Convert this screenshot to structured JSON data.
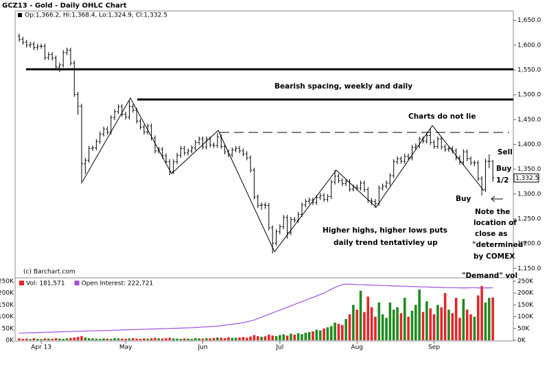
{
  "chart_data": [
    {
      "type": "ohlc",
      "title": "GCZ13 - Gold - Daily OHLC Chart",
      "subtitle": "Op:1,366.2, Hi:1,368.4, Lo:1,324.9, Cl:1,332.5",
      "source": "(c) Barchart.com",
      "last_label": "1,332.5",
      "color": "#000000",
      "categories": [
        null,
        null,
        null,
        null,
        null,
        null,
        "Apr 13",
        null,
        null,
        null,
        null,
        null,
        null,
        null,
        null,
        null,
        null,
        null,
        null,
        null,
        null,
        null,
        null,
        null,
        null,
        null,
        null,
        null,
        null,
        "May",
        null,
        null,
        null,
        null,
        null,
        null,
        null,
        null,
        null,
        null,
        null,
        null,
        null,
        null,
        null,
        null,
        null,
        null,
        null,
        null,
        "Jun",
        null,
        null,
        null,
        null,
        null,
        null,
        null,
        null,
        null,
        null,
        null,
        null,
        null,
        null,
        null,
        null,
        null,
        null,
        null,
        null,
        "Jul",
        null,
        null,
        null,
        null,
        null,
        null,
        null,
        null,
        null,
        null,
        null,
        null,
        null,
        null,
        null,
        null,
        null,
        null,
        null,
        null,
        "Aug",
        null,
        null,
        null,
        null,
        null,
        null,
        null,
        null,
        null,
        null,
        null,
        null,
        null,
        null,
        null,
        null,
        null,
        null,
        null,
        null,
        "Sep",
        null,
        null,
        null,
        null,
        null,
        null,
        null,
        null,
        null,
        null,
        null,
        null,
        null,
        null,
        null,
        null
      ],
      "open": [
        1618,
        1612,
        1606,
        1600,
        1602,
        1595,
        1598,
        1598,
        1575,
        1581,
        1574,
        1556,
        1560,
        1585,
        1590,
        1564,
        1501,
        1477,
        1361,
        1368,
        1392,
        1393,
        1406,
        1421,
        1431,
        1425,
        1454,
        1466,
        1476,
        1461,
        1455,
        1476,
        1469,
        1447,
        1435,
        1425,
        1437,
        1413,
        1387,
        1390,
        1377,
        1365,
        1345,
        1365,
        1378,
        1392,
        1383,
        1387,
        1393,
        1404,
        1411,
        1395,
        1411,
        1399,
        1398,
        1415,
        1396,
        1385,
        1379,
        1389,
        1392,
        1387,
        1381,
        1373,
        1348,
        1294,
        1277,
        1278,
        1277,
        1232,
        1201,
        1224,
        1234,
        1253,
        1222,
        1249,
        1247,
        1259,
        1278,
        1285,
        1288,
        1283,
        1293,
        1297,
        1289,
        1295,
        1324,
        1336,
        1327,
        1321,
        1325,
        1310,
        1314,
        1312,
        1322,
        1309,
        1287,
        1285,
        1281,
        1312,
        1316,
        1322,
        1337,
        1365,
        1371,
        1366,
        1376,
        1373,
        1394,
        1397,
        1411,
        1407,
        1418,
        1404,
        1396,
        1411,
        1395,
        1390,
        1392,
        1387,
        1373,
        1364,
        1385,
        1371,
        1363,
        1363,
        1331,
        1309,
        1366,
        1366.2
      ],
      "high": [
        1623,
        1617,
        1611,
        1607,
        1607,
        1603,
        1603,
        1603,
        1586,
        1586,
        1579,
        1565,
        1590,
        1595,
        1595,
        1569,
        1506,
        1482,
        1373,
        1397,
        1398,
        1411,
        1426,
        1436,
        1436,
        1459,
        1471,
        1481,
        1481,
        1466,
        1488,
        1481,
        1474,
        1452,
        1440,
        1442,
        1442,
        1418,
        1395,
        1395,
        1382,
        1370,
        1370,
        1383,
        1397,
        1397,
        1392,
        1398,
        1409,
        1416,
        1416,
        1416,
        1416,
        1404,
        1423,
        1420,
        1401,
        1390,
        1394,
        1397,
        1397,
        1392,
        1386,
        1378,
        1353,
        1299,
        1283,
        1283,
        1282,
        1237,
        1229,
        1239,
        1258,
        1258,
        1254,
        1254,
        1264,
        1283,
        1290,
        1293,
        1293,
        1298,
        1302,
        1302,
        1300,
        1329,
        1348,
        1341,
        1332,
        1330,
        1330,
        1319,
        1319,
        1327,
        1327,
        1314,
        1292,
        1290,
        1317,
        1321,
        1327,
        1342,
        1370,
        1376,
        1376,
        1381,
        1381,
        1399,
        1402,
        1416,
        1416,
        1424,
        1433,
        1409,
        1416,
        1416,
        1400,
        1397,
        1397,
        1392,
        1378,
        1390,
        1390,
        1376,
        1368,
        1368,
        1336,
        1371,
        1380,
        1368.4
      ],
      "low": [
        1607,
        1601,
        1595,
        1595,
        1590,
        1590,
        1593,
        1570,
        1570,
        1569,
        1551,
        1546,
        1555,
        1580,
        1559,
        1496,
        1460,
        1321,
        1340,
        1363,
        1387,
        1388,
        1401,
        1416,
        1420,
        1420,
        1449,
        1461,
        1456,
        1450,
        1450,
        1464,
        1442,
        1430,
        1420,
        1420,
        1408,
        1382,
        1382,
        1372,
        1360,
        1338,
        1340,
        1360,
        1373,
        1378,
        1378,
        1382,
        1388,
        1399,
        1390,
        1390,
        1394,
        1393,
        1393,
        1391,
        1380,
        1374,
        1374,
        1384,
        1382,
        1376,
        1368,
        1343,
        1289,
        1272,
        1268,
        1270,
        1227,
        1180,
        1196,
        1219,
        1229,
        1210,
        1217,
        1242,
        1242,
        1254,
        1273,
        1280,
        1278,
        1278,
        1288,
        1284,
        1284,
        1290,
        1319,
        1322,
        1316,
        1316,
        1305,
        1305,
        1307,
        1307,
        1304,
        1282,
        1278,
        1272,
        1276,
        1307,
        1311,
        1317,
        1332,
        1360,
        1361,
        1361,
        1368,
        1368,
        1389,
        1392,
        1402,
        1402,
        1399,
        1391,
        1391,
        1390,
        1385,
        1385,
        1382,
        1368,
        1359,
        1359,
        1366,
        1358,
        1356,
        1326,
        1297,
        1304,
        1352,
        1324.9
      ],
      "close": [
        1612,
        1606,
        1600,
        1602,
        1595,
        1598,
        1598,
        1575,
        1581,
        1574,
        1556,
        1560,
        1585,
        1590,
        1564,
        1501,
        1477,
        1361,
        1368,
        1392,
        1393,
        1406,
        1421,
        1431,
        1425,
        1454,
        1466,
        1476,
        1461,
        1455,
        1476,
        1469,
        1447,
        1435,
        1425,
        1437,
        1413,
        1387,
        1390,
        1377,
        1365,
        1345,
        1365,
        1378,
        1392,
        1383,
        1387,
        1393,
        1404,
        1411,
        1395,
        1411,
        1399,
        1398,
        1415,
        1396,
        1385,
        1379,
        1389,
        1392,
        1387,
        1381,
        1373,
        1348,
        1294,
        1277,
        1278,
        1277,
        1232,
        1201,
        1224,
        1234,
        1253,
        1222,
        1249,
        1247,
        1259,
        1278,
        1285,
        1288,
        1283,
        1293,
        1297,
        1289,
        1295,
        1324,
        1336,
        1327,
        1321,
        1325,
        1310,
        1314,
        1312,
        1322,
        1309,
        1287,
        1285,
        1281,
        1312,
        1316,
        1322,
        1337,
        1365,
        1371,
        1366,
        1376,
        1373,
        1394,
        1397,
        1411,
        1407,
        1418,
        1404,
        1396,
        1411,
        1395,
        1390,
        1392,
        1387,
        1373,
        1364,
        1385,
        1371,
        1363,
        1363,
        1331,
        1309,
        1366,
        1366,
        1332.5
      ],
      "ylim": [
        1131,
        1669
      ],
      "yticks": [
        {
          "value": 1150,
          "label": "1,150.0"
        },
        {
          "value": 1200,
          "label": "1,200.0"
        },
        {
          "value": 1250,
          "label": "1,250.0"
        },
        {
          "value": 1300,
          "label": "1,300.0"
        },
        {
          "value": 1350,
          "label": "1,350.0"
        },
        {
          "value": 1400,
          "label": "1,400.0"
        },
        {
          "value": 1450,
          "label": "1,450.0"
        },
        {
          "value": 1500,
          "label": "1,500.0"
        },
        {
          "value": 1550,
          "label": "1,550.0"
        },
        {
          "value": 1600,
          "label": "1,600.0"
        },
        {
          "value": 1650,
          "label": "1,650.0"
        }
      ],
      "annotations": [
        "Bearish spacing, weekly and daily",
        "Charts do not lie",
        "Higher highs, higher lows puts",
        "daily trend tentativley up",
        "Sell",
        "Buy",
        "1/2",
        "Buy",
        "Note the",
        "location of",
        "close as",
        "\"determined\"",
        "by COMEX",
        "\"Demand\" vol"
      ]
    },
    {
      "type": "volume",
      "up_color": "#1f8a1f",
      "down_color": "#e3262b",
      "series": [
        {
          "name": "Vol: 181,571",
          "color": "#e3262b",
          "values": [
            8000,
            6000,
            7000,
            5000,
            9000,
            6000,
            5000,
            8000,
            7000,
            6000,
            9000,
            7000,
            6000,
            8000,
            10000,
            12000,
            14000,
            18000,
            12000,
            9000,
            8000,
            7000,
            6000,
            8000,
            7000,
            6000,
            9000,
            8000,
            7000,
            6000,
            8000,
            9000,
            7000,
            6000,
            8000,
            7000,
            9000,
            10000,
            8000,
            7000,
            9000,
            11000,
            8000,
            7000,
            6000,
            8000,
            7000,
            6000,
            9000,
            8000,
            7000,
            9000,
            8000,
            10000,
            12000,
            11000,
            9000,
            13000,
            10000,
            11000,
            12000,
            14000,
            11000,
            16000,
            22000,
            18000,
            15000,
            17000,
            24000,
            20000,
            18000,
            22000,
            25000,
            20000,
            28000,
            24000,
            30000,
            26000,
            32000,
            35000,
            38000,
            45000,
            42000,
            50000,
            55000,
            60000,
            75000,
            70000,
            65000,
            90000,
            110000,
            150000,
            130000,
            210000,
            120000,
            185000,
            140000,
            100000,
            160000,
            110000,
            95000,
            160000,
            130000,
            140000,
            115000,
            180000,
            100000,
            125000,
            150000,
            215000,
            120000,
            165000,
            135000,
            110000,
            150000,
            140000,
            200000,
            130000,
            115000,
            180000,
            95000,
            175000,
            130000,
            110000,
            100000,
            190000,
            230000,
            160000,
            180000,
            181571
          ]
        },
        {
          "name": "Open Interest: 222,721",
          "color": "#a24fe0",
          "values": [
            30000,
            31000,
            31000,
            32000,
            32000,
            33000,
            33000,
            34000,
            34000,
            35000,
            35000,
            36000,
            36000,
            37000,
            37000,
            38000,
            38000,
            39000,
            39000,
            40000,
            40000,
            40000,
            41000,
            41000,
            42000,
            42000,
            43000,
            43000,
            44000,
            44000,
            45000,
            45000,
            46000,
            46000,
            47000,
            47000,
            48000,
            48000,
            49000,
            49000,
            50000,
            50000,
            51000,
            51000,
            52000,
            52000,
            53000,
            53000,
            54000,
            55000,
            56000,
            57000,
            58000,
            59000,
            60000,
            62000,
            64000,
            66000,
            68000,
            70000,
            72000,
            75000,
            78000,
            82000,
            86000,
            92000,
            98000,
            104000,
            110000,
            116000,
            122000,
            128000,
            134000,
            140000,
            146000,
            152000,
            158000,
            164000,
            170000,
            176000,
            182000,
            188000,
            194000,
            200000,
            208000,
            216000,
            224000,
            230000,
            236000,
            238000,
            238000,
            237000,
            236000,
            236000,
            235000,
            234000,
            234000,
            233000,
            233000,
            232000,
            232000,
            231000,
            230000,
            230000,
            229000,
            229000,
            228000,
            228000,
            227000,
            227000,
            226000,
            226000,
            225000,
            225000,
            224000,
            224000,
            223000,
            223000,
            223000,
            223000,
            222000,
            222000,
            222000,
            223000,
            223000,
            222000,
            222000,
            222000,
            222000,
            222721
          ]
        }
      ],
      "ylim": [
        0,
        264500
      ],
      "yticks": [
        {
          "value": 0,
          "label": "0K"
        },
        {
          "value": 50000,
          "label": "50K"
        },
        {
          "value": 100000,
          "label": "100K"
        },
        {
          "value": 150000,
          "label": "150K"
        },
        {
          "value": 200000,
          "label": "200K"
        },
        {
          "value": 250000,
          "label": "250K"
        }
      ]
    }
  ]
}
